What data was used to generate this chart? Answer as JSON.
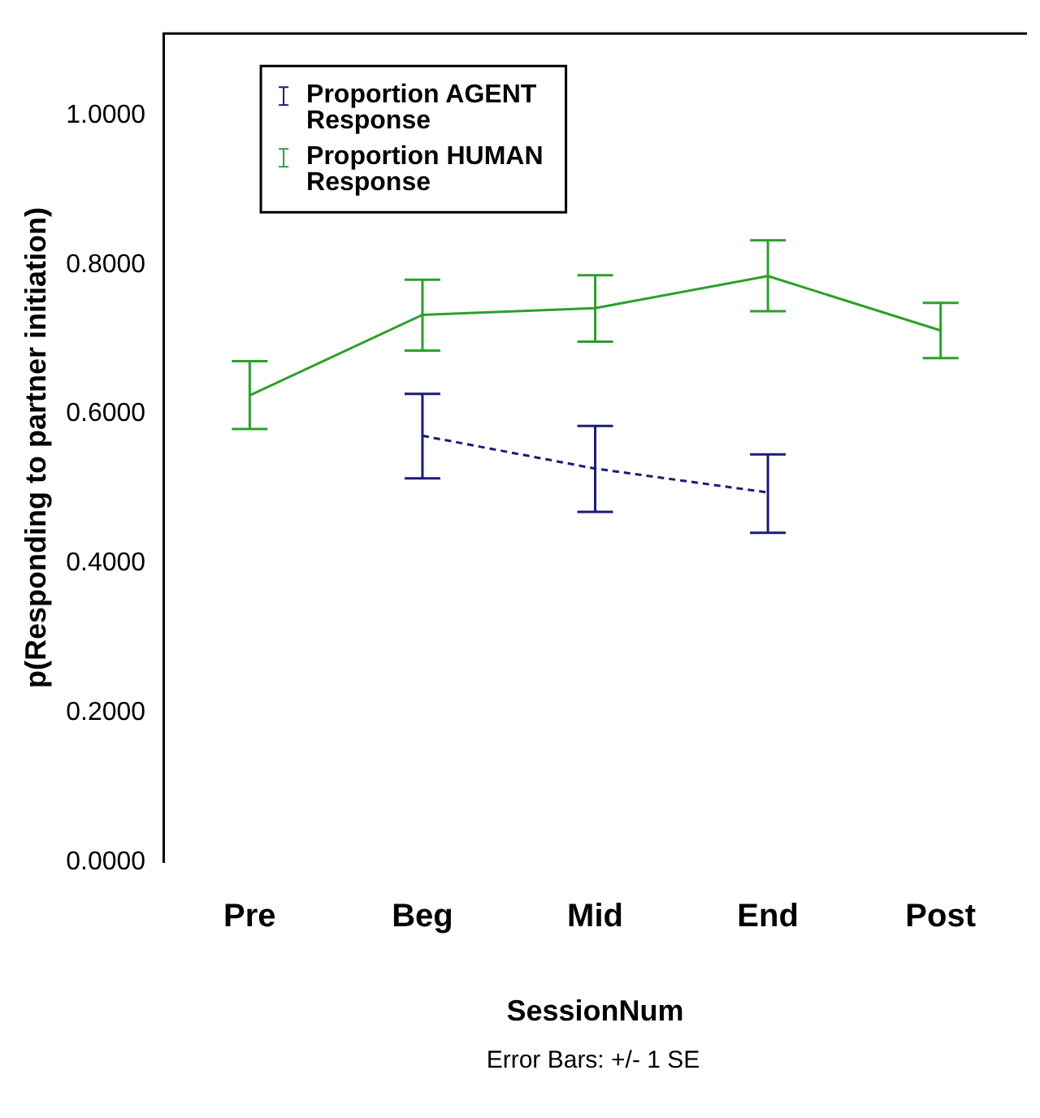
{
  "chart_data": {
    "type": "line",
    "categories": [
      "Pre",
      "Beg",
      "Mid",
      "End",
      "Post"
    ],
    "xlabel": "SessionNum",
    "ylabel": "p(Responding to partner initiation)",
    "annotations": [
      "Error Bars: +/- 1 SE"
    ],
    "ylim": [
      0,
      1.11
    ],
    "yticks": [
      {
        "value": 0,
        "label": "0.0000"
      },
      {
        "value": 0.2,
        "label": "0.2000"
      },
      {
        "value": 0.4,
        "label": "0.4000"
      },
      {
        "value": 0.6,
        "label": "0.6000"
      },
      {
        "value": 0.8,
        "label": "0.8000"
      },
      {
        "value": 1,
        "label": "1.0000"
      }
    ],
    "grid": false,
    "legend": "top left",
    "marker": "none",
    "series": [
      {
        "name": "Proportion AGENT Response",
        "color": "#1c1c78",
        "line_style": "dashed",
        "values": [
          null,
          0.571,
          0.527,
          0.495,
          null
        ],
        "errors": [
          null,
          [
            0.514,
            0.627
          ],
          [
            0.469,
            0.584
          ],
          [
            0.441,
            0.546
          ],
          null
        ]
      },
      {
        "name": "Proportion HUMAN Response",
        "color": "#2ca02c",
        "line_style": "solid",
        "values": [
          0.625,
          0.733,
          0.742,
          0.785,
          0.712
        ],
        "errors": [
          [
            0.58,
            0.671
          ],
          [
            0.685,
            0.78
          ],
          [
            0.697,
            0.786
          ],
          [
            0.738,
            0.833
          ],
          [
            0.675,
            0.749
          ]
        ]
      }
    ]
  }
}
